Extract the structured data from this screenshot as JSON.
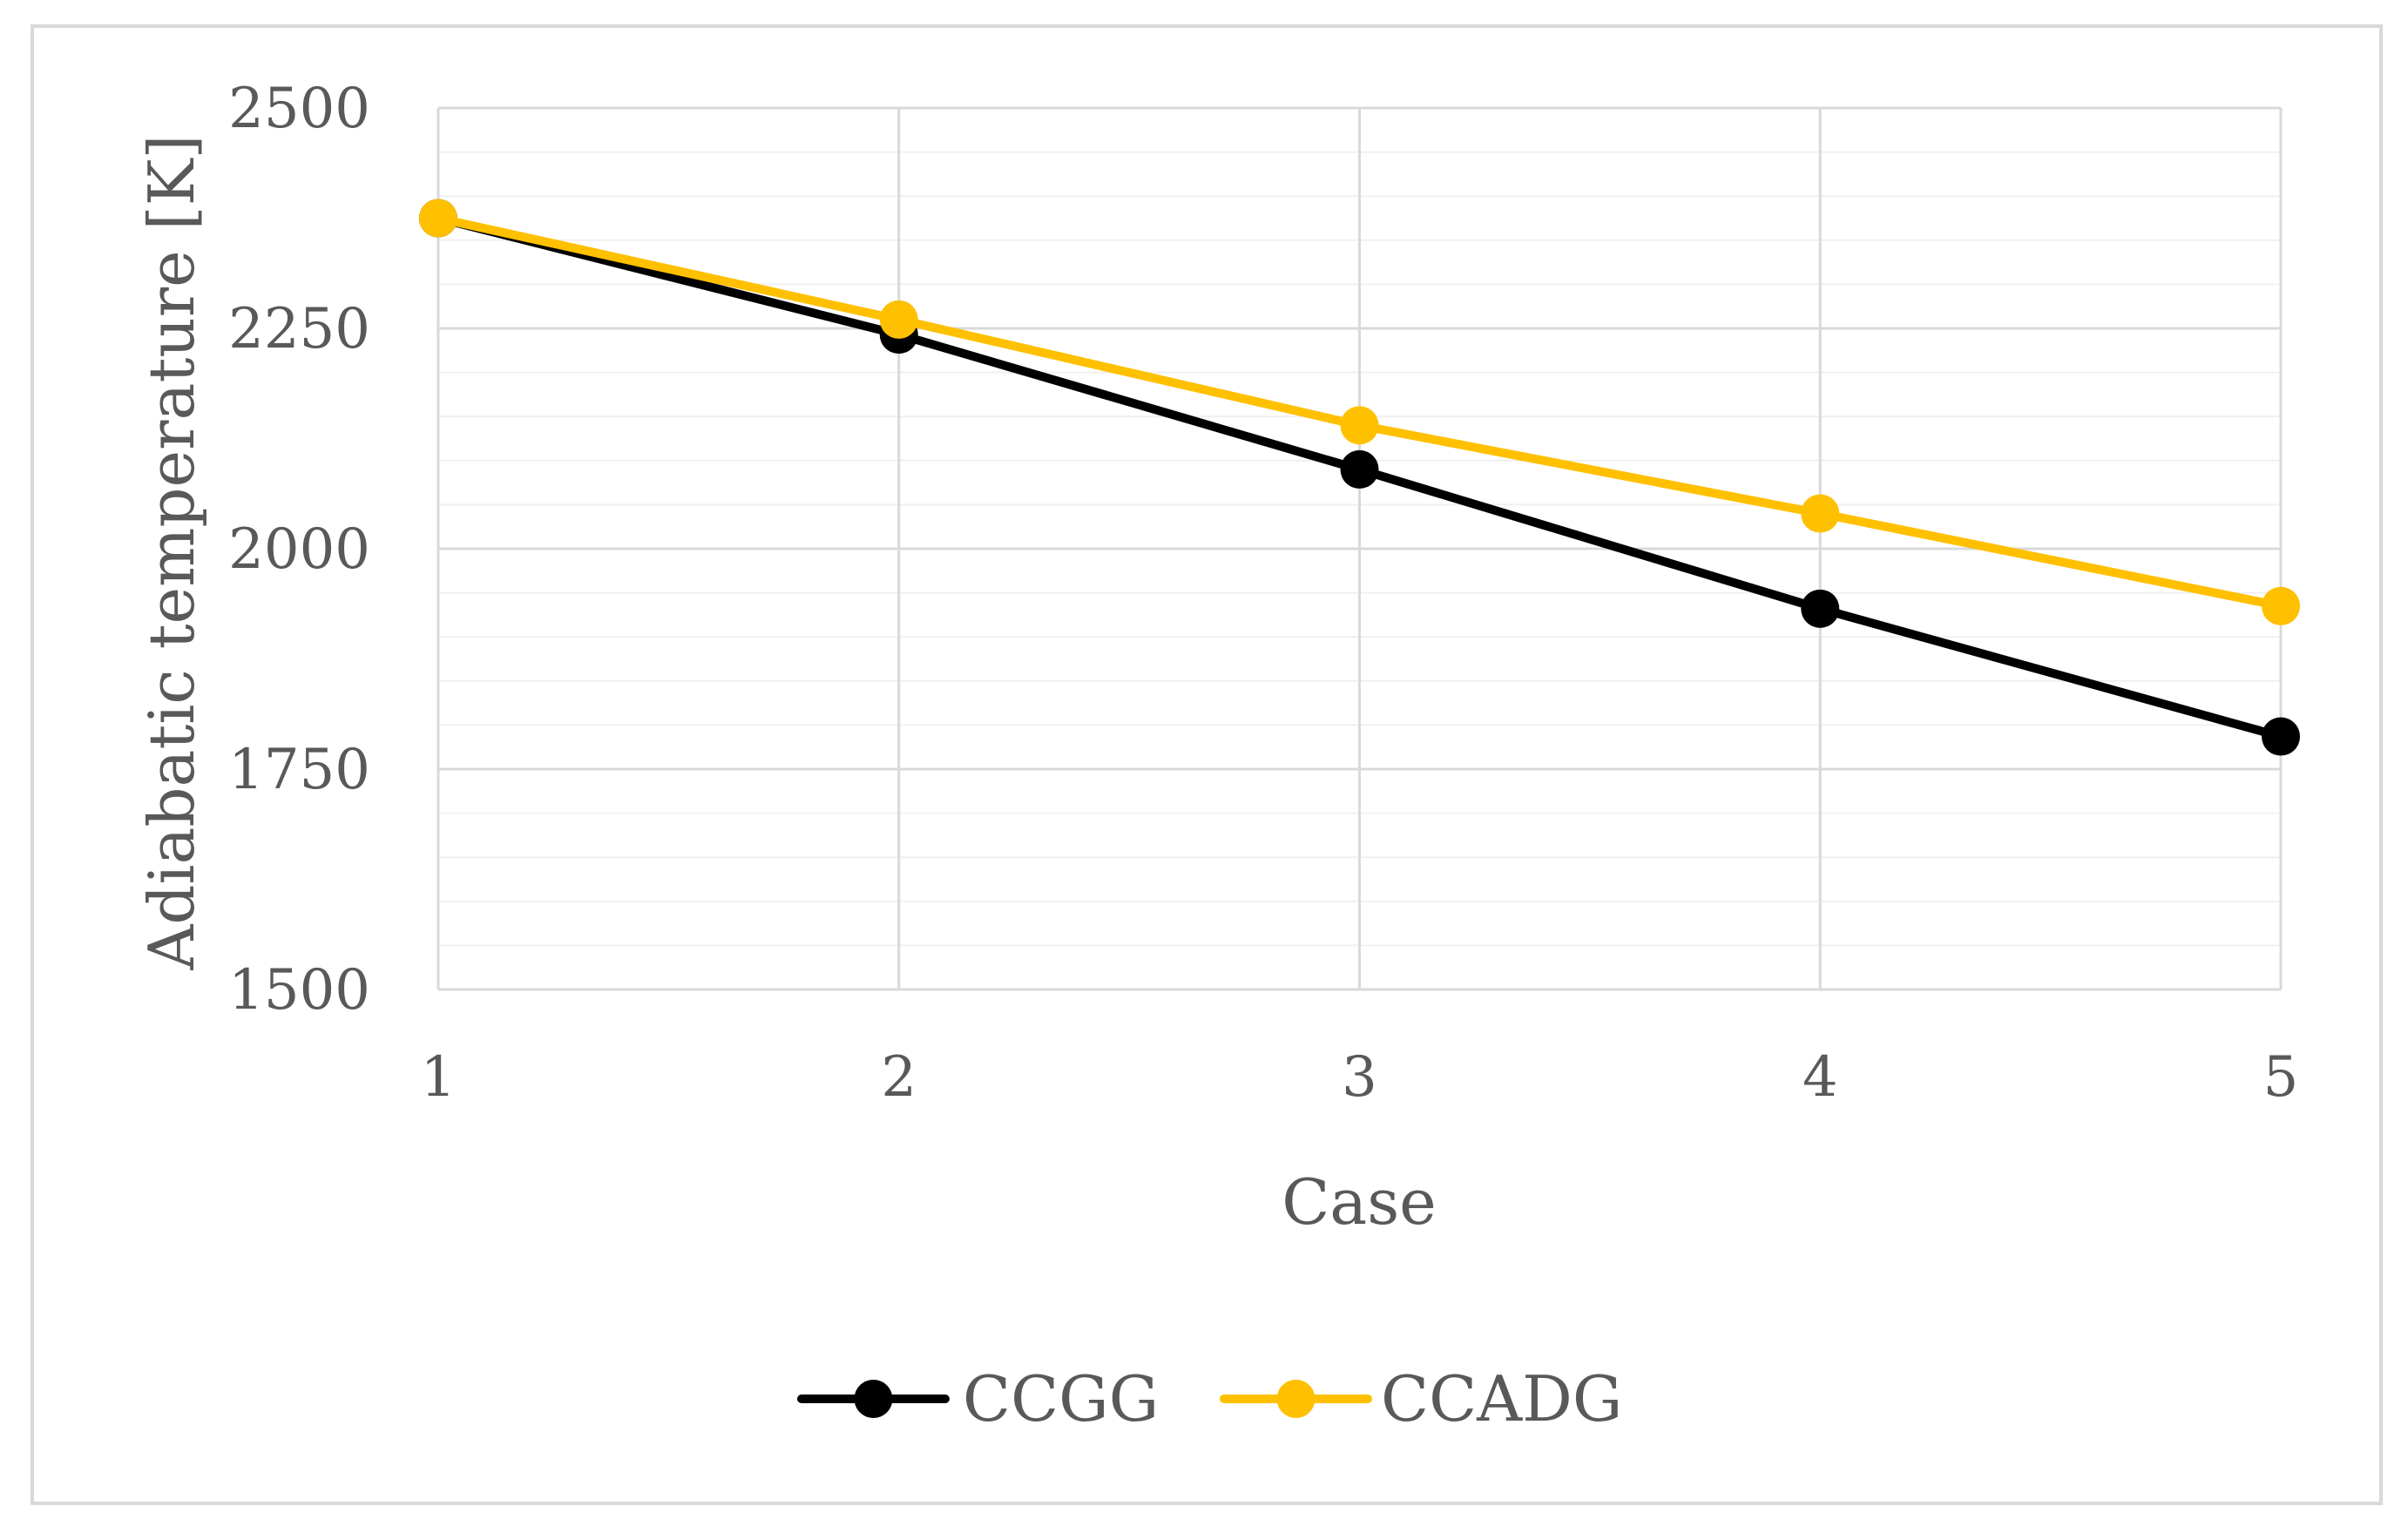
{
  "chart_data": {
    "type": "line",
    "title": "",
    "xlabel": "Case",
    "ylabel": "Adiabatic temperature [K]",
    "categories": [
      "1",
      "2",
      "3",
      "4",
      "5"
    ],
    "ylim": [
      1500,
      2500
    ],
    "yticks": [
      "1500",
      "1750",
      "2000",
      "2250",
      "2500"
    ],
    "y_major_step": 250,
    "y_minor_step": 50,
    "grid": true,
    "legend_position": "bottom-center",
    "series": [
      {
        "name": "CCGG",
        "color": "#000000",
        "values": [
          2375,
          2243,
          2090,
          1932,
          1787
        ]
      },
      {
        "name": "CCADG",
        "color": "#FFC000",
        "values": [
          2375,
          2260,
          2140,
          2040,
          1935
        ]
      }
    ]
  }
}
